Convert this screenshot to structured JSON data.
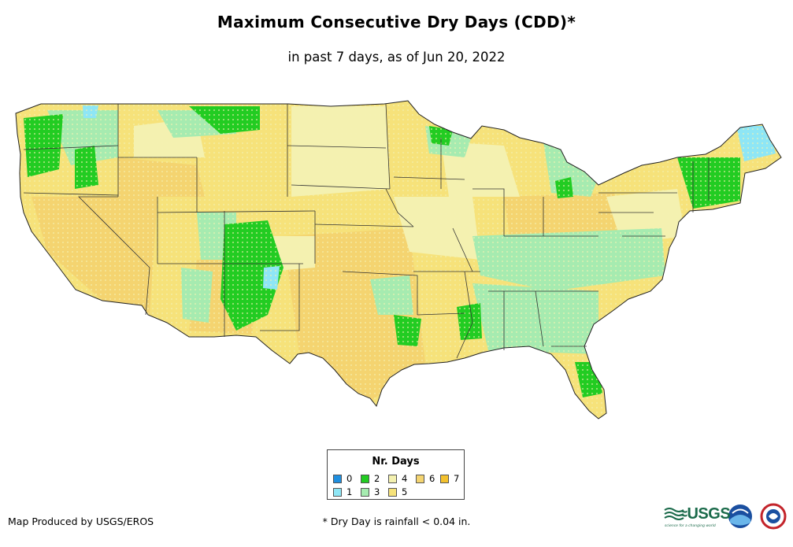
{
  "map": {
    "title": "Maximum Consecutive Dry Days (CDD)*",
    "subtitle": "in past 7 days, as of Jun 20, 2022",
    "region": "Contiguous United States"
  },
  "legend": {
    "title": "Nr. Days",
    "items": [
      {
        "label": "0",
        "color": "#1f8fe0"
      },
      {
        "label": "1",
        "color": "#8ee6f5"
      },
      {
        "label": "2",
        "color": "#22cc22"
      },
      {
        "label": "3",
        "color": "#a6ebb0"
      },
      {
        "label": "4",
        "color": "#f4f1b0"
      },
      {
        "label": "5",
        "color": "#f6e27a"
      },
      {
        "label": "6",
        "color": "#f4d470"
      },
      {
        "label": "7",
        "color": "#f3c12d"
      }
    ]
  },
  "footer": {
    "credit": "Map Produced by USGS/EROS",
    "footnote": "* Dry Day is rainfall < 0.04 in.",
    "usgs_logo": "≈USGS",
    "usgs_tagline": "science for a changing world",
    "noaa_logo": "noaa",
    "nws_logo": "NATIONAL WEATHER SERVICE"
  }
}
